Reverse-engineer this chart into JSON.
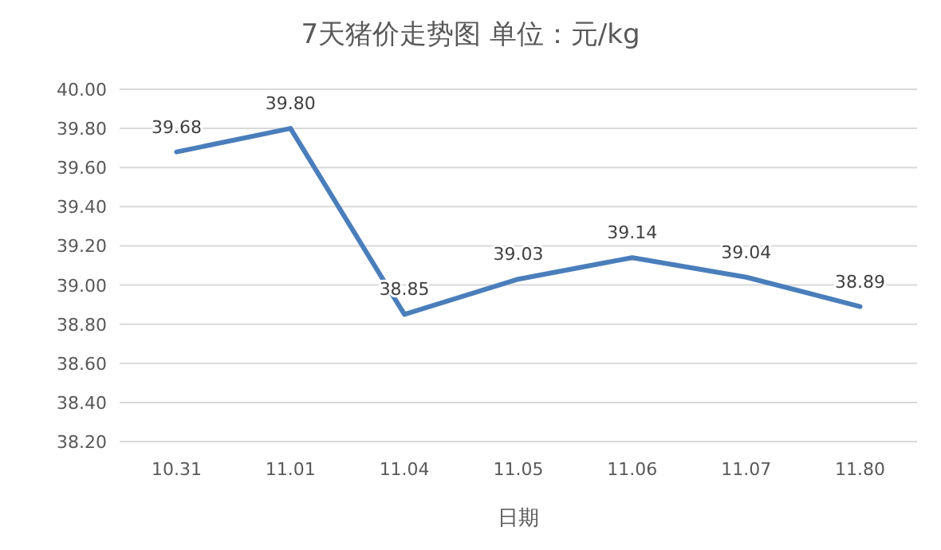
{
  "chart_data": {
    "type": "line",
    "title": "7天猪价走势图  单位：元/kg",
    "xlabel": "日期",
    "categories": [
      "10.31",
      "11.01",
      "11.04",
      "11.05",
      "11.06",
      "11.07",
      "11.80"
    ],
    "series": [
      {
        "color": "#4a7ebb",
        "values": [
          39.68,
          39.8,
          38.85,
          39.03,
          39.14,
          39.04,
          38.89
        ],
        "value_labels": [
          "39.68",
          "39.80",
          "38.85",
          "39.03",
          "39.14",
          "39.04",
          "38.89"
        ]
      }
    ],
    "ylim": [
      38.2,
      40.0
    ],
    "yticks": [
      {
        "value": 38.2,
        "label": "38.20"
      },
      {
        "value": 38.4,
        "label": "38.40"
      },
      {
        "value": 38.6,
        "label": "38.60"
      },
      {
        "value": 38.8,
        "label": "38.80"
      },
      {
        "value": 39.0,
        "label": "39.00"
      },
      {
        "value": 39.2,
        "label": "39.20"
      },
      {
        "value": 39.4,
        "label": "39.40"
      },
      {
        "value": 39.6,
        "label": "39.60"
      },
      {
        "value": 39.8,
        "label": "39.80"
      },
      {
        "value": 40.0,
        "label": "40.00"
      }
    ],
    "grid": "y",
    "marker": "none",
    "line_style": "solid"
  }
}
